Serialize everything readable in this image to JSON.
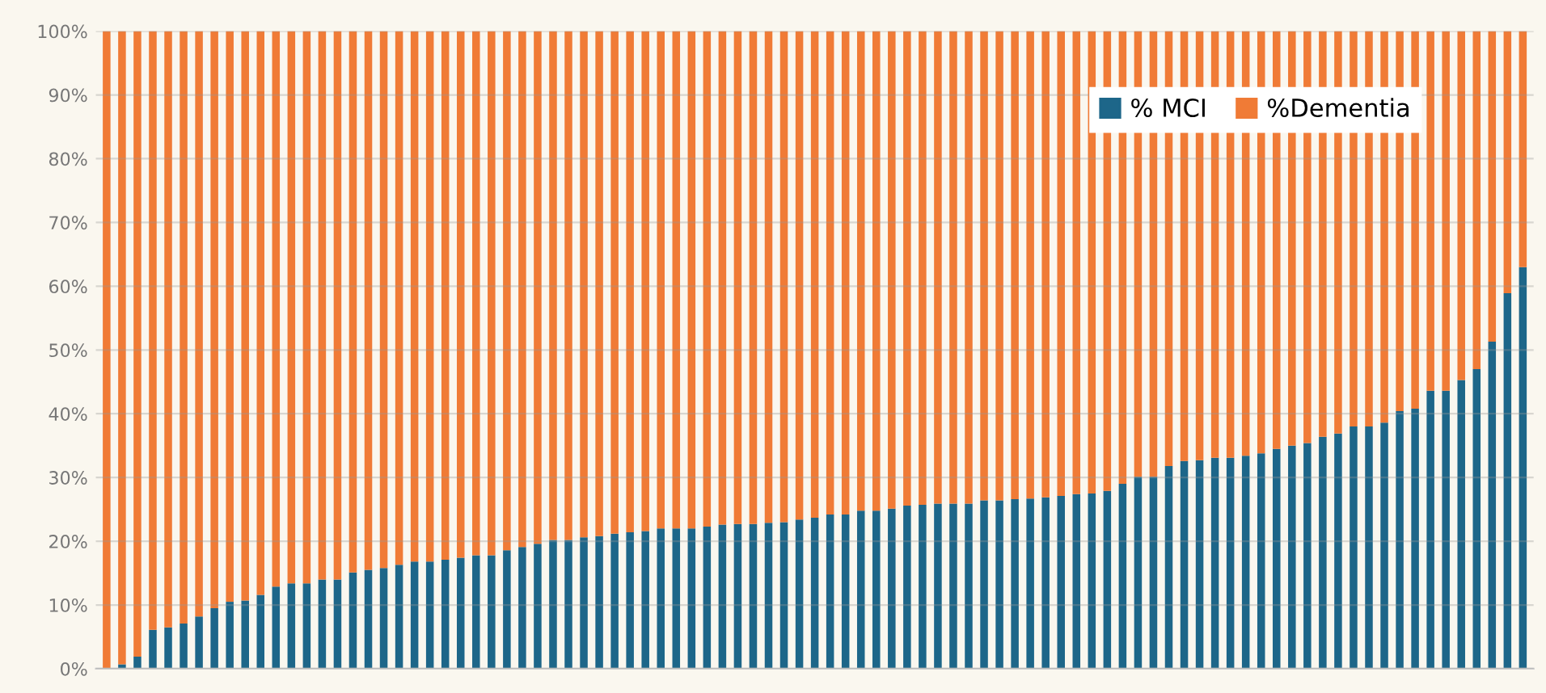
{
  "chart_data": {
    "type": "bar",
    "stacked": true,
    "categories": [
      null,
      null,
      null,
      null,
      null,
      null,
      null,
      null,
      null,
      null,
      null,
      null,
      null,
      null,
      null,
      null,
      null,
      null,
      null,
      null,
      null,
      null,
      null,
      null,
      null,
      null,
      null,
      null,
      null,
      null,
      null,
      null,
      null,
      null,
      null,
      null,
      null,
      null,
      null,
      null,
      null,
      null,
      null,
      null,
      null,
      null,
      null,
      null,
      null,
      null,
      null,
      null,
      null,
      null,
      null,
      null,
      null,
      null,
      null,
      null,
      null,
      null,
      null,
      null,
      null,
      null,
      null,
      null,
      null,
      null,
      null,
      null,
      null,
      null,
      null,
      null,
      null,
      null,
      null,
      null,
      null,
      null,
      null,
      null,
      null,
      null,
      null,
      null,
      null,
      null,
      null,
      null,
      null
    ],
    "series": [
      {
        "name": "% MCI",
        "color": "#1d6689",
        "values": [
          0,
          0.7,
          1.9,
          6.1,
          6.5,
          7.1,
          8.2,
          9.5,
          10.5,
          10.7,
          11.6,
          12.9,
          13.4,
          13.4,
          14.0,
          14.0,
          15.1,
          15.5,
          15.8,
          16.3,
          16.8,
          16.8,
          17.1,
          17.4,
          17.8,
          17.8,
          18.6,
          19.1,
          19.6,
          20.2,
          20.2,
          20.6,
          20.8,
          21.2,
          21.4,
          21.6,
          22.0,
          22.0,
          22.0,
          22.3,
          22.6,
          22.7,
          22.7,
          22.9,
          23.0,
          23.4,
          23.7,
          24.2,
          24.2,
          24.8,
          24.8,
          25.1,
          25.6,
          25.7,
          25.9,
          25.9,
          25.9,
          26.4,
          26.4,
          26.6,
          26.7,
          26.9,
          27.1,
          27.4,
          27.5,
          27.9,
          29.0,
          30.1,
          30.1,
          31.8,
          32.6,
          32.7,
          33.1,
          33.1,
          33.4,
          33.8,
          34.5,
          35.0,
          35.4,
          36.4,
          36.9,
          38.0,
          38.0,
          38.6,
          40.4,
          40.8,
          43.6,
          43.6,
          45.3,
          47.0,
          51.3,
          58.9,
          63.0
        ]
      },
      {
        "name": "%Dementia",
        "color": "#f07b36",
        "values": [
          100,
          99.3,
          98.1,
          93.9,
          93.5,
          92.9,
          91.8,
          90.5,
          89.5,
          89.3,
          88.4,
          87.1,
          86.6,
          86.6,
          86.0,
          86.0,
          84.9,
          84.5,
          84.2,
          83.7,
          83.2,
          83.2,
          82.9,
          82.6,
          82.2,
          82.2,
          81.4,
          80.9,
          80.4,
          79.8,
          79.8,
          79.4,
          79.2,
          78.8,
          78.6,
          78.4,
          78.0,
          78.0,
          78.0,
          77.7,
          77.4,
          77.3,
          77.3,
          77.1,
          77.0,
          76.6,
          76.3,
          75.8,
          75.8,
          75.2,
          75.2,
          74.9,
          74.4,
          74.3,
          74.1,
          74.1,
          74.1,
          73.6,
          73.6,
          73.4,
          73.3,
          73.1,
          72.9,
          72.6,
          72.5,
          72.1,
          71.0,
          69.9,
          69.9,
          68.2,
          67.4,
          67.3,
          66.9,
          66.9,
          66.6,
          66.2,
          65.5,
          65.0,
          64.6,
          63.6,
          63.1,
          62.0,
          62.0,
          61.4,
          59.6,
          59.2,
          56.4,
          56.4,
          54.7,
          53.0,
          48.7,
          41.1,
          37.0
        ]
      }
    ],
    "ylim": [
      0,
      100
    ],
    "yticks": [
      {
        "value": 0,
        "label": "0%"
      },
      {
        "value": 10,
        "label": "10%"
      },
      {
        "value": 20,
        "label": "20%"
      },
      {
        "value": 30,
        "label": "30%"
      },
      {
        "value": 40,
        "label": "40%"
      },
      {
        "value": 50,
        "label": "50%"
      },
      {
        "value": 60,
        "label": "60%"
      },
      {
        "value": 70,
        "label": "70%"
      },
      {
        "value": 80,
        "label": "80%"
      },
      {
        "value": 90,
        "label": "90%"
      },
      {
        "value": 100,
        "label": "100%"
      }
    ],
    "grid": "y",
    "legend": "top right"
  }
}
